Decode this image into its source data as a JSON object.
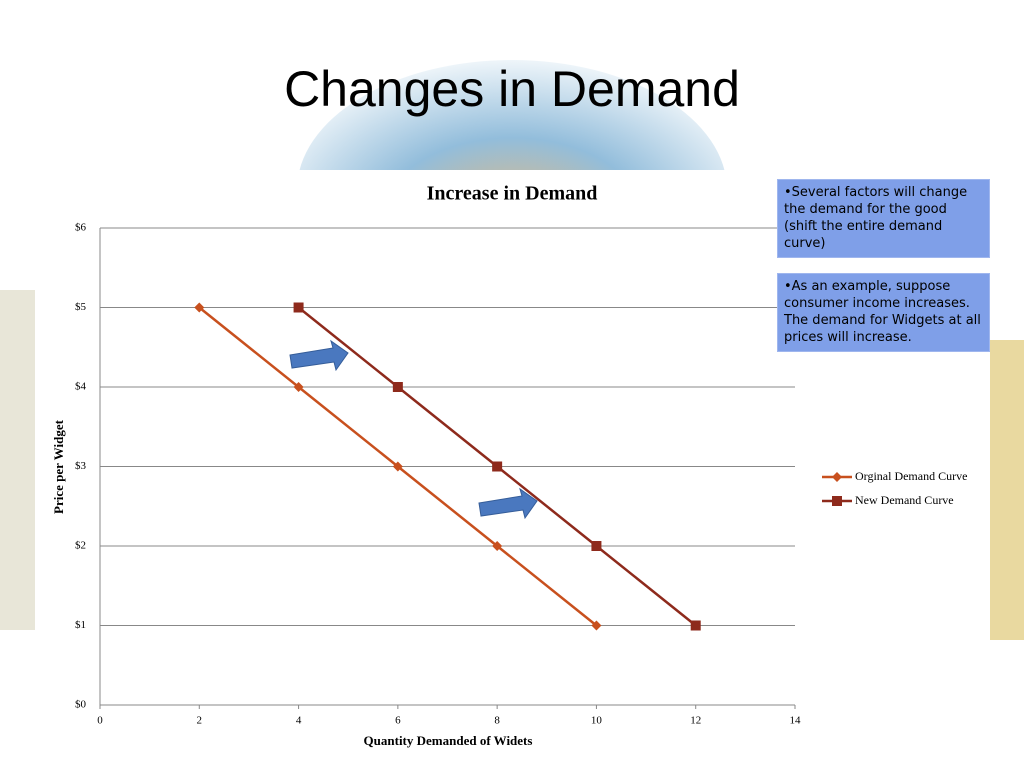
{
  "slide": {
    "title": "Changes in Demand",
    "notes": [
      "•Several factors will change the demand for the good (shift the entire demand curve)",
      "•As an example, suppose consumer income increases. The demand for Widgets at all prices will increase."
    ]
  },
  "chart_data": {
    "type": "line",
    "title": "Increase in Demand",
    "x_label": "Quantity Demanded of Widets",
    "y_label": "Price per Widget",
    "series": [
      {
        "name": "Orginal Demand Curve",
        "color": "#c8501e",
        "marker": "diamond",
        "x": [
          2,
          4,
          6,
          8,
          10
        ],
        "values": [
          5,
          4,
          3,
          2,
          1
        ]
      },
      {
        "name": "New Demand Curve",
        "color": "#8e2a1c",
        "marker": "square",
        "x": [
          4,
          6,
          8,
          10,
          12
        ],
        "values": [
          5,
          4,
          3,
          2,
          1
        ]
      }
    ],
    "xlim": [
      0,
      14
    ],
    "xticks": [
      0,
      2,
      4,
      6,
      8,
      10,
      12,
      14
    ],
    "ylim": [
      0,
      6
    ],
    "yticks": [
      {
        "value": 0,
        "label": "$0"
      },
      {
        "value": 1,
        "label": "$1"
      },
      {
        "value": 2,
        "label": "$2"
      },
      {
        "value": 3,
        "label": "$3"
      },
      {
        "value": 4,
        "label": "$4"
      },
      {
        "value": 5,
        "label": "$5"
      },
      {
        "value": 6,
        "label": "$6"
      }
    ],
    "grid": true,
    "legend": "right"
  }
}
